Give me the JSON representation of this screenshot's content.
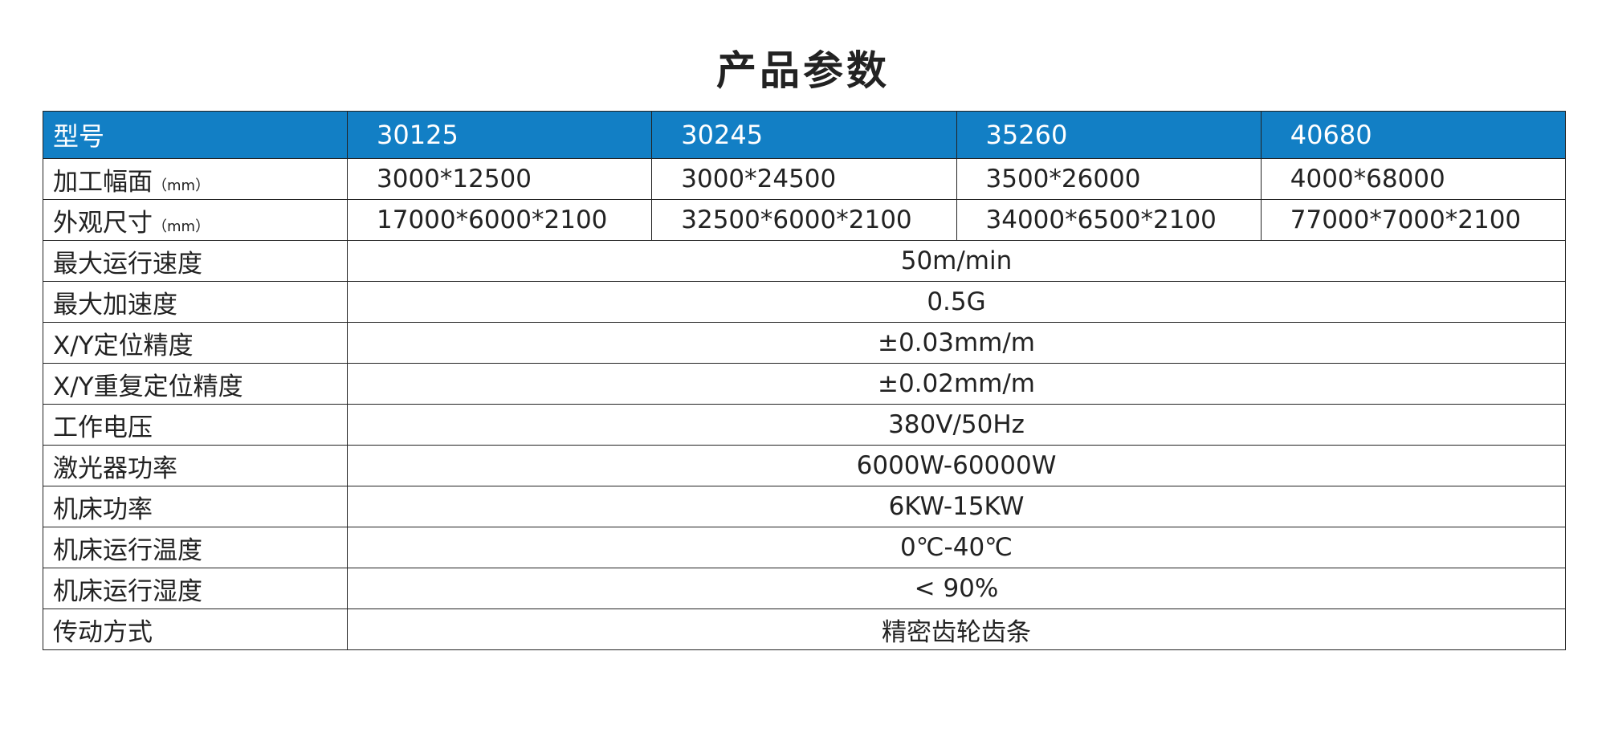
{
  "title": "产品参数",
  "header": {
    "label": "型号",
    "models": [
      "30125",
      "30245",
      "35260",
      "40680"
    ]
  },
  "colors": {
    "header_bg": "#127fc5",
    "header_text": "#ffffff",
    "border": "#222222"
  },
  "rows_per_model": [
    {
      "label": "加工幅面",
      "unit": "（mm）",
      "values": [
        "3000*12500",
        "3000*24500",
        "3500*26000",
        "4000*68000"
      ]
    },
    {
      "label": "外观尺寸",
      "unit": "（mm）",
      "values": [
        "17000*6000*2100",
        "32500*6000*2100",
        "34000*6500*2100",
        "77000*7000*2100"
      ]
    }
  ],
  "rows_shared": [
    {
      "label": "最大运行速度",
      "value": "50m/min"
    },
    {
      "label": "最大加速度",
      "value": "0.5G"
    },
    {
      "label": "X/Y定位精度",
      "value": "±0.03mm/m"
    },
    {
      "label": "X/Y重复定位精度",
      "value": "±0.02mm/m"
    },
    {
      "label": "工作电压",
      "value": "380V/50Hz"
    },
    {
      "label": "激光器功率",
      "value": "6000W-60000W"
    },
    {
      "label": "机床功率",
      "value": "6KW-15KW"
    },
    {
      "label": "机床运行温度",
      "value": "0℃-40℃"
    },
    {
      "label": "机床运行湿度",
      "value": "< 90%"
    },
    {
      "label": "传动方式",
      "value": "精密齿轮齿条"
    }
  ]
}
